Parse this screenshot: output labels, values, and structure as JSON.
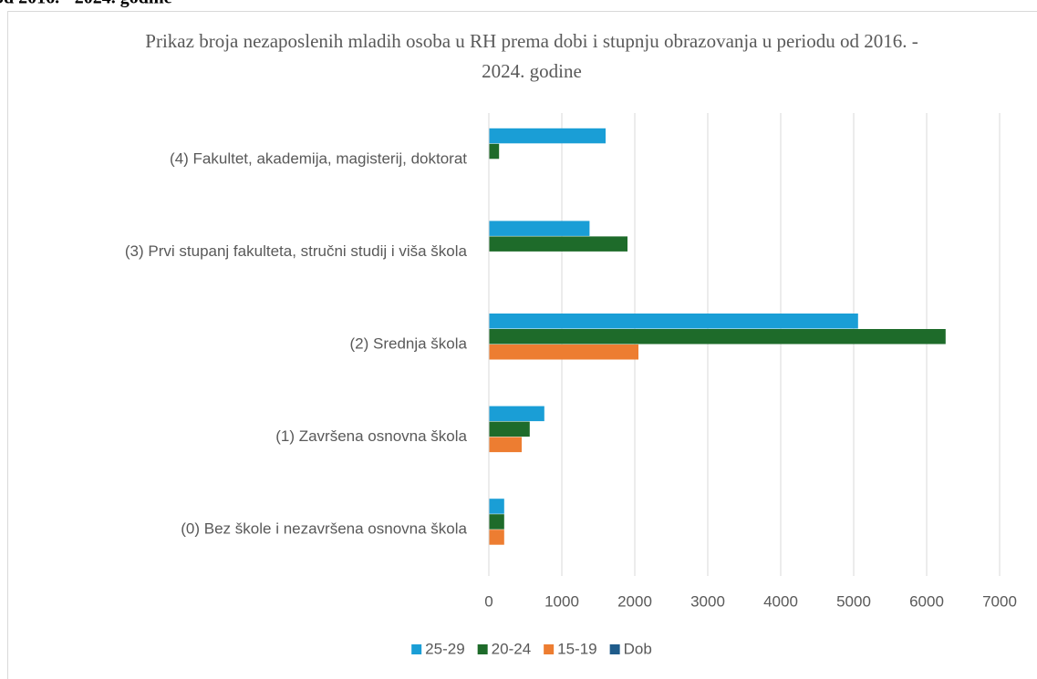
{
  "page_fragment": "od 2016. - 2024. godine",
  "chart_data": {
    "type": "hbar",
    "title": "Prikaz broja nezaposlenih mladih osoba u RH prema dobi i stupnju obrazovanja u periodu od 2016. - 2024. godine",
    "categories": [
      "(0) Bez škole i nezavršena osnovna škola",
      "(1) Završena osnovna škola",
      "(2) Srednja škola",
      "(3) Prvi stupanj fakulteta, stručni studij i viša škola",
      "(4) Fakultet, akademija, magisterij, doktorat"
    ],
    "series": [
      {
        "name": "25-29",
        "color": "#1a9ed6",
        "values": [
          210,
          760,
          5060,
          1380,
          1600
        ]
      },
      {
        "name": "20-24",
        "color": "#1e6b2a",
        "values": [
          210,
          560,
          6260,
          1900,
          140
        ]
      },
      {
        "name": "15-19",
        "color": "#ed7d31",
        "values": [
          210,
          450,
          2050,
          null,
          null
        ]
      },
      {
        "name": "Dob",
        "color": "#1f5c8b",
        "values": [
          null,
          null,
          null,
          null,
          null
        ]
      }
    ],
    "xlim": [
      0,
      7000
    ],
    "xticks": [
      0,
      1000,
      2000,
      3000,
      4000,
      5000,
      6000,
      7000
    ],
    "grid": true,
    "legend": "bottom"
  }
}
